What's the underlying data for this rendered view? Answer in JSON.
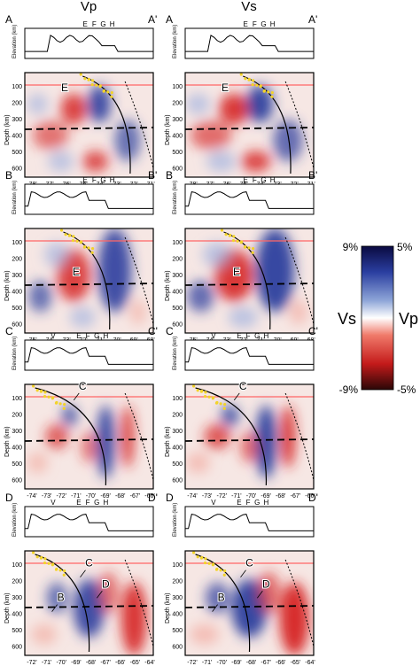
{
  "columns": {
    "vp": "Vp",
    "vs": "Vs"
  },
  "rows": [
    {
      "left_label": "A",
      "right_label": "A'",
      "xticks": [
        "-78'",
        "-77'",
        "-76'",
        "-75'",
        "-74'",
        "-73'",
        "-72'",
        "-71'"
      ],
      "markers": [
        "E",
        "F",
        "G",
        "H"
      ],
      "features": [
        "E"
      ]
    },
    {
      "left_label": "B",
      "right_label": "B'",
      "xticks": [
        "-75'",
        "-74'",
        "-73'",
        "-72'",
        "-71'",
        "-70'",
        "-69'",
        "-68'"
      ],
      "markers": [
        "E",
        "F",
        "G",
        "H"
      ],
      "features": [
        "E"
      ]
    },
    {
      "left_label": "C",
      "right_label": "C'",
      "xticks": [
        "-74'",
        "-73'",
        "-72'",
        "-71'",
        "-70'",
        "-69'",
        "-68'",
        "-67'",
        "-66'"
      ],
      "markers": [
        "V",
        "E",
        "F",
        "G",
        "H"
      ],
      "features": [
        "C"
      ]
    },
    {
      "left_label": "D",
      "right_label": "D'",
      "xticks": [
        "-72'",
        "-71'",
        "-70'",
        "-69'",
        "-68'",
        "-67'",
        "-66'",
        "-65'",
        "-64'"
      ],
      "markers": [
        "V",
        "E",
        "F",
        "G",
        "H"
      ],
      "features": [
        "B",
        "C",
        "D"
      ]
    }
  ],
  "elevation_label": "Elevation (km)",
  "depth_label": "Depth (km)",
  "depth_ticks": [
    "100",
    "200",
    "300",
    "400",
    "500",
    "600"
  ],
  "colorbar": {
    "vs_label": "Vs",
    "vp_label": "Vp",
    "vs_max": "9%",
    "vs_min": "-9%",
    "vp_max": "5%",
    "vp_min": "-5%",
    "colors": [
      "#2a0707",
      "#c41a1a",
      "#f07a6a",
      "#ffffff",
      "#8fa6d8",
      "#2a3ea0",
      "#0a0a40"
    ]
  }
}
